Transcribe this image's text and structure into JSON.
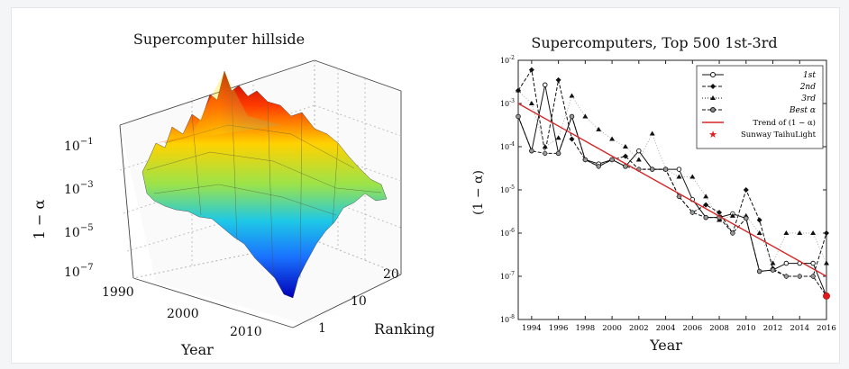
{
  "left_chart": {
    "title": "Supercomputer hillside",
    "zlabel": "1 − α",
    "xlabel": "Year",
    "ylabel": "Ranking",
    "z_ticks": [
      {
        "base": "10",
        "exp": "−1"
      },
      {
        "base": "10",
        "exp": "−3"
      },
      {
        "base": "10",
        "exp": "−5"
      },
      {
        "base": "10",
        "exp": "−7"
      }
    ],
    "year_ticks": [
      "1990",
      "2000",
      "2010"
    ],
    "rank_ticks": [
      "1",
      "10",
      "20"
    ]
  },
  "chart_data": [
    {
      "type": "surface",
      "title": "Supercomputer hillside",
      "xlabel": "Year",
      "ylabel": "Ranking",
      "zlabel": "1 − α",
      "x_range": [
        1990,
        2016
      ],
      "y_range": [
        1,
        25
      ],
      "z_scale": "log",
      "z_range": [
        1e-08,
        0.1
      ],
      "colormap": "jet"
    },
    {
      "type": "line",
      "title": "Supercomputers, Top 500 1st-3rd",
      "xlabel": "Year",
      "ylabel": "(1 − α)",
      "yscale": "log",
      "xlim": [
        1993,
        2016
      ],
      "ylim": [
        1e-08,
        0.01
      ],
      "x_ticks": [
        "1994",
        "1996",
        "1998",
        "2000",
        "2002",
        "2004",
        "2006",
        "2008",
        "2010",
        "2012",
        "2014",
        "2016"
      ],
      "y_ticks": [
        {
          "base": "10",
          "exp": "-2"
        },
        {
          "base": "10",
          "exp": "-3"
        },
        {
          "base": "10",
          "exp": "-4"
        },
        {
          "base": "10",
          "exp": "-5"
        },
        {
          "base": "10",
          "exp": "-6"
        },
        {
          "base": "10",
          "exp": "-7"
        },
        {
          "base": "10",
          "exp": "-8"
        }
      ],
      "legend_position": "top-right",
      "x": [
        1993,
        1994,
        1995,
        1996,
        1997,
        1998,
        1999,
        2000,
        2001,
        2002,
        2003,
        2004,
        2005,
        2006,
        2007,
        2008,
        2009,
        2010,
        2011,
        2012,
        2013,
        2014,
        2015,
        2016
      ],
      "series": [
        {
          "name": "1st",
          "style": "solid",
          "marker": "circle",
          "values": [
            0.0005,
            8e-05,
            0.0027,
            7e-05,
            0.0005,
            5e-05,
            4e-05,
            5e-05,
            3.5e-05,
            8e-05,
            3e-05,
            3e-05,
            3e-05,
            6e-06,
            2.3e-06,
            2.3e-06,
            2.8e-06,
            2.2e-06,
            1.3e-07,
            1.4e-07,
            2e-07,
            2e-07,
            2e-07,
            3.5e-08
          ]
        },
        {
          "name": "2nd",
          "style": "dashed",
          "marker": "diamond",
          "values": [
            0.002,
            0.006,
            7e-05,
            0.0035,
            0.00015,
            5e-05,
            3.5e-05,
            5e-05,
            6e-05,
            3e-05,
            3e-05,
            3e-05,
            7e-06,
            3e-06,
            4.5e-06,
            3e-06,
            1e-06,
            1e-05,
            2e-06,
            1.5e-07,
            1e-07,
            1e-07,
            1e-07,
            1e-06
          ]
        },
        {
          "name": "3rd",
          "style": "dotted",
          "marker": "triangle",
          "values": [
            0.002,
            0.001,
            0.0001,
            0.00016,
            0.0015,
            0.0005,
            0.00025,
            0.00015,
            0.0001,
            5e-05,
            0.0002,
            3e-05,
            2e-05,
            2e-05,
            7e-06,
            2e-06,
            2.5e-06,
            2.5e-06,
            1e-06,
            2e-07,
            1e-06,
            1e-06,
            1e-06,
            2e-07
          ]
        },
        {
          "name": "Best α",
          "style": "dashed",
          "marker": "circle-open",
          "values": [
            0.0005,
            8e-05,
            7e-05,
            7e-05,
            0.0005,
            5e-05,
            3.5e-05,
            5e-05,
            3.5e-05,
            3e-05,
            3e-05,
            3e-05,
            7e-06,
            3e-06,
            2.3e-06,
            2.3e-06,
            1e-06,
            2.2e-06,
            1.3e-07,
            1.4e-07,
            1e-07,
            1e-07,
            1e-07,
            3.5e-08
          ]
        },
        {
          "name": "Trend of (1 − α)",
          "style": "solid",
          "color": "#d62728",
          "x": [
            1993,
            2016
          ],
          "values": [
            0.001,
            1e-07
          ]
        },
        {
          "name": "Sunway TaihuLight",
          "marker": "star",
          "color": "#e11b1b",
          "x": [
            2016
          ],
          "values": [
            3.5e-08
          ]
        }
      ]
    }
  ],
  "right_chart_text": {
    "title": "Supercomputers, Top 500 1st-3rd",
    "xlabel": "Year",
    "ylabel": "(1 − α)",
    "legend": [
      "1st",
      "2nd",
      "3rd",
      "Best α",
      "Trend of (1 − α)",
      "Sunway TaihuLight"
    ]
  }
}
